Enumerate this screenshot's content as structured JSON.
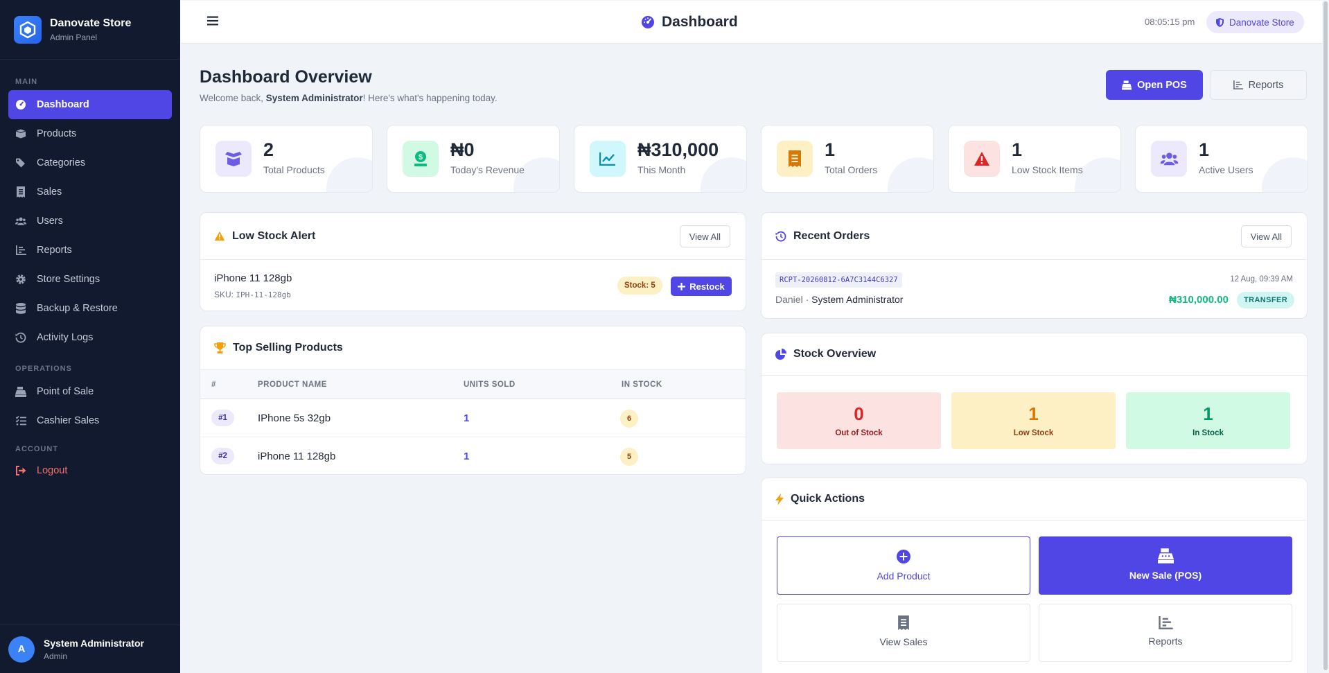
{
  "brand": {
    "name": "Danovate Store",
    "subtitle": "Admin Panel"
  },
  "sidebar": {
    "sections": {
      "main": "MAIN",
      "operations": "OPERATIONS",
      "account": "ACCOUNT"
    },
    "main_items": [
      {
        "label": "Dashboard",
        "icon": "gauge-icon",
        "active": true
      },
      {
        "label": "Products",
        "icon": "box-icon"
      },
      {
        "label": "Categories",
        "icon": "tags-icon"
      },
      {
        "label": "Sales",
        "icon": "receipt-icon"
      },
      {
        "label": "Users",
        "icon": "users-icon"
      },
      {
        "label": "Reports",
        "icon": "bar-chart-icon"
      },
      {
        "label": "Store Settings",
        "icon": "gear-icon"
      },
      {
        "label": "Backup & Restore",
        "icon": "database-icon"
      },
      {
        "label": "Activity Logs",
        "icon": "history-icon"
      }
    ],
    "operations_items": [
      {
        "label": "Point of Sale",
        "icon": "cash-register-icon"
      },
      {
        "label": "Cashier Sales",
        "icon": "list-check-icon"
      }
    ],
    "account_items": [
      {
        "label": "Logout",
        "icon": "sign-out-icon"
      }
    ],
    "user": {
      "initial": "A",
      "name": "System Administrator",
      "role": "Admin"
    }
  },
  "topbar": {
    "title": "Dashboard",
    "time": "08:05:15 pm",
    "store_pill": "Danovate Store"
  },
  "header": {
    "title": "Dashboard Overview",
    "welcome_prefix": "Welcome back, ",
    "welcome_name": "System Administrator",
    "welcome_suffix": "! Here's what's happening today.",
    "open_pos": "Open POS",
    "reports": "Reports"
  },
  "stats": [
    {
      "value": "2",
      "label": "Total Products",
      "icon": "box-open-icon",
      "color": "#6d5ce8",
      "bg": "#ece9fd"
    },
    {
      "value": "₦0",
      "label": "Today's Revenue",
      "icon": "money-bill-icon",
      "color": "#10b981",
      "bg": "#d1fae5"
    },
    {
      "value": "₦310,000",
      "label": "This Month",
      "icon": "chart-line-icon",
      "color": "#0891b2",
      "bg": "#cff7fc"
    },
    {
      "value": "1",
      "label": "Total Orders",
      "icon": "receipt-icon",
      "color": "#d97706",
      "bg": "#fdf0c4"
    },
    {
      "value": "1",
      "label": "Low Stock Items",
      "icon": "warning-icon",
      "color": "#dc2626",
      "bg": "#fde2e2"
    },
    {
      "value": "1",
      "label": "Active Users",
      "icon": "users-icon",
      "color": "#6d5ce8",
      "bg": "#ece9fd"
    }
  ],
  "low_stock": {
    "title": "Low Stock Alert",
    "view_all": "View All",
    "item": {
      "name": "iPhone 11 128gb",
      "sku_label": "SKU:",
      "sku": "IPH-11-128gb",
      "stock": "Stock: 5",
      "restock": "Restock"
    }
  },
  "top_selling": {
    "title": "Top Selling Products",
    "columns": [
      "#",
      "PRODUCT NAME",
      "UNITS SOLD",
      "IN STOCK"
    ],
    "rows": [
      {
        "rank": "#1",
        "name": "IPhone 5s 32gb",
        "units": "1",
        "stock": "6"
      },
      {
        "rank": "#2",
        "name": "iPhone 11 128gb",
        "units": "1",
        "stock": "5"
      }
    ]
  },
  "recent_orders": {
    "title": "Recent Orders",
    "view_all": "View All",
    "order": {
      "receipt": "RCPT-20260812-6A7C3144C6327",
      "date": "12 Aug, 09:39 AM",
      "customer": "Daniel",
      "separator": " · ",
      "cashier": "System Administrator",
      "amount": "₦310,000.00",
      "method": "TRANSFER"
    }
  },
  "stock_overview": {
    "title": "Stock Overview",
    "boxes": [
      {
        "value": "0",
        "label": "Out of Stock",
        "color": "#dc2626",
        "bg": "#fde2e2"
      },
      {
        "value": "1",
        "label": "Low Stock",
        "color": "#d97706",
        "bg": "#fdf0c4"
      },
      {
        "value": "1",
        "label": "In Stock",
        "color": "#059669",
        "bg": "#d1fae5"
      }
    ]
  },
  "quick_actions": {
    "title": "Quick Actions",
    "items": [
      {
        "label": "Add Product",
        "icon": "plus-circle-icon"
      },
      {
        "label": "New Sale (POS)",
        "icon": "cash-register-icon"
      },
      {
        "label": "View Sales",
        "icon": "receipt-icon"
      },
      {
        "label": "Reports",
        "icon": "bar-chart-icon"
      }
    ]
  }
}
